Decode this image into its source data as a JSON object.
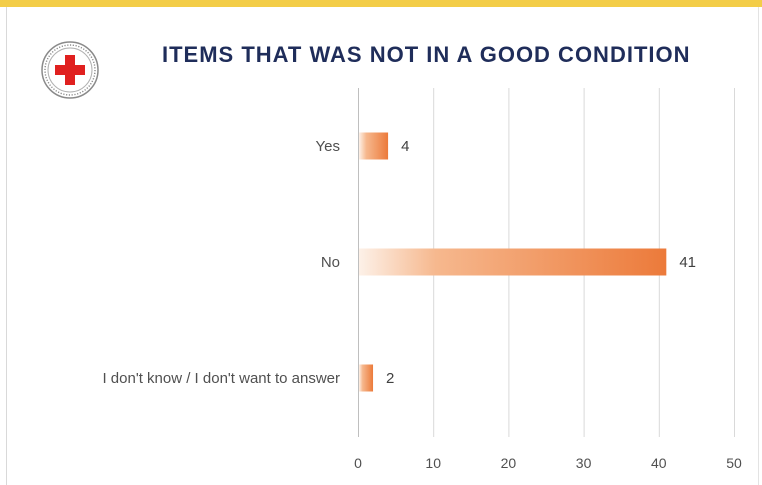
{
  "chart_data": {
    "type": "bar",
    "orientation": "horizontal",
    "title": "ITEMS THAT WAS NOT IN A GOOD CONDITION",
    "categories": [
      "Yes",
      "No",
      "I don't know / I don't want to answer"
    ],
    "values": [
      4,
      41,
      2
    ],
    "data_labels": [
      "4",
      "41",
      "2"
    ],
    "xlim": [
      0,
      50
    ],
    "xticks": [
      0,
      10,
      20,
      30,
      40,
      50
    ],
    "xtick_labels": [
      "0",
      "10",
      "20",
      "30",
      "40",
      "50"
    ],
    "grid": true,
    "bar_color": "#ec7a3a",
    "bar_fill": "gradient"
  },
  "colors": {
    "title": "#1f2d5a",
    "accent_band": "#f3cd48",
    "gridline": "#d9d9d9",
    "logo_red": "#e0201f"
  },
  "icons": {
    "logo": "red-cross-emblem-icon"
  }
}
